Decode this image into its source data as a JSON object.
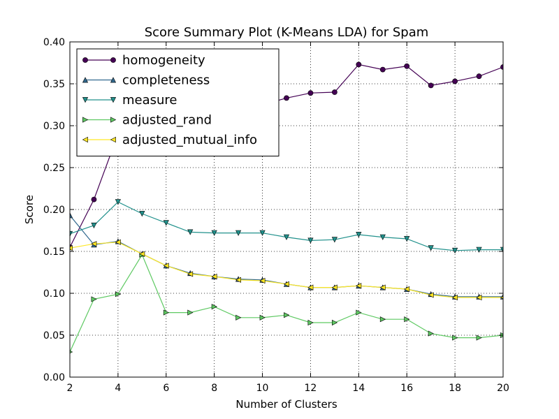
{
  "chart_data": {
    "type": "line",
    "title": "Score Summary Plot (K-Means LDA) for Spam",
    "xlabel": "Number of Clusters",
    "ylabel": "Score",
    "xlim": [
      2,
      20
    ],
    "ylim": [
      0.0,
      0.4
    ],
    "xticks": [
      2,
      4,
      6,
      8,
      10,
      12,
      14,
      16,
      18,
      20
    ],
    "yticks": [
      "0.00",
      "0.05",
      "0.10",
      "0.15",
      "0.20",
      "0.25",
      "0.30",
      "0.35",
      "0.40"
    ],
    "grid": true,
    "legend_position": "top-left",
    "x": [
      2,
      3,
      4,
      5,
      6,
      7,
      8,
      9,
      10,
      11,
      12,
      13,
      14,
      15,
      16,
      17,
      18,
      19,
      20
    ],
    "series": [
      {
        "name": "homogeneity",
        "color": "#440154",
        "marker": "circle",
        "values": [
          0.155,
          0.212,
          0.29,
          0.3,
          0.305,
          0.31,
          0.315,
          0.32,
          0.325,
          0.333,
          0.339,
          0.34,
          0.373,
          0.367,
          0.371,
          0.348,
          0.353,
          0.359,
          0.37
        ]
      },
      {
        "name": "completeness",
        "color": "#31688e",
        "marker": "triangle-up",
        "values": [
          0.193,
          0.158,
          0.162,
          0.147,
          0.133,
          0.124,
          0.12,
          0.117,
          0.116,
          0.111,
          0.107,
          0.107,
          0.109,
          0.107,
          0.105,
          0.099,
          0.096,
          0.096,
          0.096
        ]
      },
      {
        "name": "measure",
        "color": "#21918c",
        "marker": "triangle-down",
        "values": [
          0.171,
          0.181,
          0.209,
          0.195,
          0.184,
          0.173,
          0.172,
          0.172,
          0.172,
          0.167,
          0.163,
          0.164,
          0.17,
          0.167,
          0.165,
          0.154,
          0.151,
          0.152,
          0.152
        ]
      },
      {
        "name": "adjusted_rand",
        "color": "#5ec962",
        "marker": "triangle-right",
        "values": [
          0.03,
          0.093,
          0.099,
          0.146,
          0.077,
          0.077,
          0.084,
          0.071,
          0.071,
          0.074,
          0.065,
          0.065,
          0.077,
          0.069,
          0.069,
          0.052,
          0.047,
          0.047,
          0.05
        ]
      },
      {
        "name": "adjusted_mutual_info",
        "color": "#fde725",
        "marker": "triangle-left",
        "values": [
          0.154,
          0.159,
          0.161,
          0.147,
          0.133,
          0.123,
          0.12,
          0.116,
          0.115,
          0.111,
          0.107,
          0.107,
          0.109,
          0.107,
          0.105,
          0.098,
          0.095,
          0.095,
          0.095
        ]
      }
    ]
  }
}
